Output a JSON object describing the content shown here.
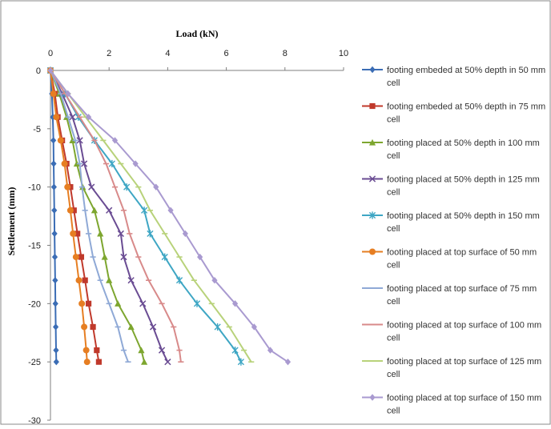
{
  "chart_data": {
    "type": "line",
    "title": "",
    "xlabel": "Load (kN)",
    "ylabel": "Settlement (mm)",
    "xlim": [
      0,
      10
    ],
    "ylim": [
      -30,
      0
    ],
    "x_ticks": [
      0,
      2,
      4,
      6,
      8,
      10
    ],
    "y_ticks": [
      0,
      -5,
      -10,
      -15,
      -20,
      -25,
      -30
    ],
    "x_axis_position": "top",
    "grid": false,
    "legend_position": "right",
    "series": [
      {
        "name": "footing embeded at 50% depth in 50 mm cell",
        "color": "#3b6db5",
        "marker": "diamond",
        "points": [
          [
            0,
            0
          ],
          [
            0.05,
            -2
          ],
          [
            0.08,
            -4
          ],
          [
            0.1,
            -6
          ],
          [
            0.11,
            -8
          ],
          [
            0.12,
            -10
          ],
          [
            0.13,
            -12
          ],
          [
            0.14,
            -14
          ],
          [
            0.15,
            -16
          ],
          [
            0.16,
            -18
          ],
          [
            0.17,
            -20
          ],
          [
            0.18,
            -22
          ],
          [
            0.19,
            -24
          ],
          [
            0.2,
            -25
          ]
        ]
      },
      {
        "name": "footing embeded at 50% depth in 75 mm cell",
        "color": "#c0392b",
        "marker": "square",
        "points": [
          [
            0,
            0
          ],
          [
            0.15,
            -2
          ],
          [
            0.25,
            -4
          ],
          [
            0.4,
            -6
          ],
          [
            0.55,
            -8
          ],
          [
            0.68,
            -10
          ],
          [
            0.8,
            -12
          ],
          [
            0.92,
            -14
          ],
          [
            1.05,
            -16
          ],
          [
            1.18,
            -18
          ],
          [
            1.3,
            -20
          ],
          [
            1.45,
            -22
          ],
          [
            1.58,
            -24
          ],
          [
            1.65,
            -25
          ]
        ]
      },
      {
        "name": "footing placed at 50% depth in 100 mm cell",
        "color": "#7da62f",
        "marker": "triangle",
        "points": [
          [
            0,
            0
          ],
          [
            0.3,
            -2
          ],
          [
            0.55,
            -4
          ],
          [
            0.75,
            -6
          ],
          [
            0.9,
            -8
          ],
          [
            1.1,
            -10
          ],
          [
            1.5,
            -12
          ],
          [
            1.7,
            -14
          ],
          [
            1.85,
            -16
          ],
          [
            2.0,
            -18
          ],
          [
            2.3,
            -20
          ],
          [
            2.75,
            -22
          ],
          [
            3.1,
            -24
          ],
          [
            3.2,
            -25
          ]
        ]
      },
      {
        "name": "footing placed at 50% depth in 125 mm cell",
        "color": "#6a4c93",
        "marker": "x",
        "points": [
          [
            0,
            0
          ],
          [
            0.4,
            -2
          ],
          [
            0.75,
            -4
          ],
          [
            1.0,
            -6
          ],
          [
            1.15,
            -8
          ],
          [
            1.4,
            -10
          ],
          [
            2.0,
            -12
          ],
          [
            2.4,
            -14
          ],
          [
            2.5,
            -16
          ],
          [
            2.75,
            -18
          ],
          [
            3.15,
            -20
          ],
          [
            3.5,
            -22
          ],
          [
            3.8,
            -24
          ],
          [
            4.0,
            -25
          ]
        ]
      },
      {
        "name": "footing placed at 50% depth in 150 mm cell",
        "color": "#3ea6c4",
        "marker": "star",
        "points": [
          [
            0,
            0
          ],
          [
            0.5,
            -2
          ],
          [
            0.95,
            -4
          ],
          [
            1.5,
            -6
          ],
          [
            2.1,
            -8
          ],
          [
            2.6,
            -10
          ],
          [
            3.2,
            -12
          ],
          [
            3.4,
            -14
          ],
          [
            3.9,
            -16
          ],
          [
            4.4,
            -18
          ],
          [
            5.0,
            -20
          ],
          [
            5.7,
            -22
          ],
          [
            6.3,
            -24
          ],
          [
            6.5,
            -25
          ]
        ]
      },
      {
        "name": "footing placed at top surface of 50 mm cell",
        "color": "#e67e22",
        "marker": "circle",
        "points": [
          [
            0,
            0
          ],
          [
            0.1,
            -2
          ],
          [
            0.2,
            -4
          ],
          [
            0.35,
            -6
          ],
          [
            0.48,
            -8
          ],
          [
            0.58,
            -10
          ],
          [
            0.68,
            -12
          ],
          [
            0.77,
            -14
          ],
          [
            0.87,
            -16
          ],
          [
            0.97,
            -18
          ],
          [
            1.07,
            -20
          ],
          [
            1.15,
            -22
          ],
          [
            1.22,
            -24
          ],
          [
            1.25,
            -25
          ]
        ]
      },
      {
        "name": "footing placed at top surface of 75 mm cell",
        "color": "#8fa9d6",
        "marker": "dash",
        "points": [
          [
            0,
            0
          ],
          [
            0.35,
            -2
          ],
          [
            0.6,
            -4
          ],
          [
            0.85,
            -6
          ],
          [
            1.0,
            -8
          ],
          [
            1.08,
            -10
          ],
          [
            1.18,
            -12
          ],
          [
            1.3,
            -14
          ],
          [
            1.45,
            -16
          ],
          [
            1.7,
            -18
          ],
          [
            2.0,
            -20
          ],
          [
            2.3,
            -22
          ],
          [
            2.5,
            -24
          ],
          [
            2.65,
            -25
          ]
        ]
      },
      {
        "name": "footing placed at top surface of 100 mm cell",
        "color": "#d88a8a",
        "marker": "dash",
        "points": [
          [
            0,
            0
          ],
          [
            0.5,
            -2
          ],
          [
            1.0,
            -4
          ],
          [
            1.5,
            -6
          ],
          [
            1.9,
            -8
          ],
          [
            2.2,
            -10
          ],
          [
            2.5,
            -12
          ],
          [
            2.7,
            -14
          ],
          [
            3.0,
            -16
          ],
          [
            3.35,
            -18
          ],
          [
            3.8,
            -20
          ],
          [
            4.2,
            -22
          ],
          [
            4.4,
            -24
          ],
          [
            4.45,
            -25
          ]
        ]
      },
      {
        "name": "footing placed at top surface of 125 mm cell",
        "color": "#b8d27a",
        "marker": "dash",
        "points": [
          [
            0,
            0
          ],
          [
            0.6,
            -2
          ],
          [
            1.2,
            -4
          ],
          [
            1.8,
            -6
          ],
          [
            2.4,
            -8
          ],
          [
            3.0,
            -10
          ],
          [
            3.4,
            -12
          ],
          [
            3.9,
            -14
          ],
          [
            4.4,
            -16
          ],
          [
            4.9,
            -18
          ],
          [
            5.5,
            -20
          ],
          [
            6.1,
            -22
          ],
          [
            6.6,
            -24
          ],
          [
            6.85,
            -25
          ]
        ]
      },
      {
        "name": "footing placed at top surface of 150 mm cell",
        "color": "#a99ad0",
        "marker": "diamond",
        "points": [
          [
            0,
            0
          ],
          [
            0.6,
            -2
          ],
          [
            1.3,
            -4
          ],
          [
            2.2,
            -6
          ],
          [
            2.9,
            -8
          ],
          [
            3.6,
            -10
          ],
          [
            4.1,
            -12
          ],
          [
            4.6,
            -14
          ],
          [
            5.1,
            -16
          ],
          [
            5.6,
            -18
          ],
          [
            6.3,
            -20
          ],
          [
            6.95,
            -22
          ],
          [
            7.5,
            -24
          ],
          [
            8.1,
            -25
          ]
        ]
      }
    ]
  }
}
